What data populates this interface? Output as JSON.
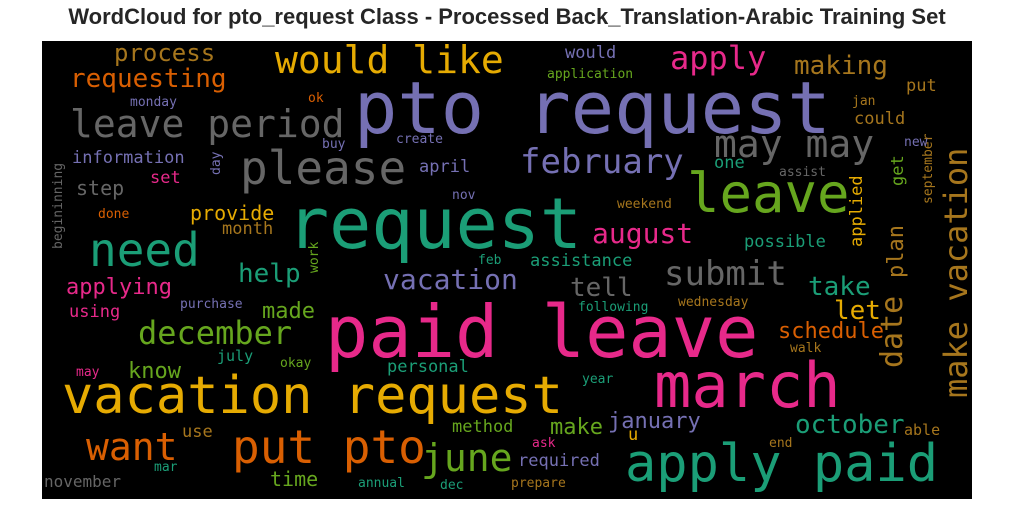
{
  "title": "WordCloud for pto_request Class - Processed Back_Translation-Arabic Training Set",
  "colors": {
    "purple": "#7570b3",
    "teal": "#1b9e77",
    "pink": "#e7298a",
    "orange": "#d95f02",
    "gold": "#e6ab02",
    "green": "#66a61e",
    "brown": "#a6761d",
    "gray": "#666666",
    "background": "#000000"
  },
  "words": [
    {
      "text": "pto request",
      "color": "purple"
    },
    {
      "text": "request",
      "color": "teal"
    },
    {
      "text": "paid leave",
      "color": "pink"
    },
    {
      "text": "vacation request",
      "color": "gold"
    },
    {
      "text": "march",
      "color": "pink"
    },
    {
      "text": "apply paid",
      "color": "teal"
    },
    {
      "text": "leave",
      "color": "green"
    },
    {
      "text": "please",
      "color": "gray"
    },
    {
      "text": "need",
      "color": "teal"
    },
    {
      "text": "put pto",
      "color": "orange"
    },
    {
      "text": "want",
      "color": "orange"
    },
    {
      "text": "make vacation",
      "color": "brown"
    },
    {
      "text": "may may",
      "color": "gray"
    },
    {
      "text": "leave period",
      "color": "gray"
    },
    {
      "text": "would like",
      "color": "gold"
    },
    {
      "text": "june",
      "color": "green"
    },
    {
      "text": "february",
      "color": "purple"
    },
    {
      "text": "december",
      "color": "green"
    },
    {
      "text": "submit",
      "color": "gray"
    },
    {
      "text": "date",
      "color": "brown"
    },
    {
      "text": "apply",
      "color": "pink"
    },
    {
      "text": "vacation",
      "color": "purple"
    },
    {
      "text": "august",
      "color": "pink"
    },
    {
      "text": "requesting",
      "color": "orange"
    },
    {
      "text": "process",
      "color": "brown"
    },
    {
      "text": "making",
      "color": "brown"
    },
    {
      "text": "help",
      "color": "teal"
    },
    {
      "text": "october",
      "color": "teal"
    },
    {
      "text": "tell",
      "color": "gray"
    },
    {
      "text": "take",
      "color": "teal"
    },
    {
      "text": "let",
      "color": "gold"
    },
    {
      "text": "plan",
      "color": "brown"
    },
    {
      "text": "applying",
      "color": "pink"
    },
    {
      "text": "january",
      "color": "purple"
    },
    {
      "text": "schedule",
      "color": "orange"
    },
    {
      "text": "make",
      "color": "green"
    },
    {
      "text": "know",
      "color": "green"
    },
    {
      "text": "made",
      "color": "green"
    },
    {
      "text": "provide",
      "color": "gold"
    },
    {
      "text": "step",
      "color": "gray"
    },
    {
      "text": "information",
      "color": "purple"
    },
    {
      "text": "could",
      "color": "brown"
    },
    {
      "text": "applied",
      "color": "gold"
    },
    {
      "text": "use",
      "color": "brown"
    },
    {
      "text": "time",
      "color": "green"
    },
    {
      "text": "required",
      "color": "purple"
    },
    {
      "text": "assistance",
      "color": "teal"
    },
    {
      "text": "possible",
      "color": "teal"
    },
    {
      "text": "method",
      "color": "green"
    },
    {
      "text": "personal",
      "color": "teal"
    },
    {
      "text": "month",
      "color": "brown"
    },
    {
      "text": "using",
      "color": "pink"
    },
    {
      "text": "put",
      "color": "brown"
    },
    {
      "text": "april",
      "color": "purple"
    },
    {
      "text": "set",
      "color": "pink"
    },
    {
      "text": "one",
      "color": "teal"
    },
    {
      "text": "get",
      "color": "green"
    },
    {
      "text": "would",
      "color": "purple"
    },
    {
      "text": "u",
      "color": "gold"
    },
    {
      "text": "july",
      "color": "teal"
    },
    {
      "text": "november",
      "color": "gray"
    },
    {
      "text": "able",
      "color": "brown"
    },
    {
      "text": "september",
      "color": "brown"
    },
    {
      "text": "application",
      "color": "green"
    },
    {
      "text": "monday",
      "color": "purple"
    },
    {
      "text": "ok",
      "color": "orange"
    },
    {
      "text": "jan",
      "color": "brown"
    },
    {
      "text": "buy",
      "color": "purple"
    },
    {
      "text": "create",
      "color": "purple"
    },
    {
      "text": "new",
      "color": "purple"
    },
    {
      "text": "day",
      "color": "purple"
    },
    {
      "text": "assist",
      "color": "gray"
    },
    {
      "text": "nov",
      "color": "purple"
    },
    {
      "text": "weekend",
      "color": "brown"
    },
    {
      "text": "done",
      "color": "orange"
    },
    {
      "text": "work",
      "color": "green"
    },
    {
      "text": "feb",
      "color": "teal"
    },
    {
      "text": "purchase",
      "color": "purple"
    },
    {
      "text": "following",
      "color": "teal"
    },
    {
      "text": "wednesday",
      "color": "brown"
    },
    {
      "text": "walk",
      "color": "brown"
    },
    {
      "text": "okay",
      "color": "green"
    },
    {
      "text": "may",
      "color": "pink"
    },
    {
      "text": "year",
      "color": "teal"
    },
    {
      "text": "end",
      "color": "brown"
    },
    {
      "text": "ask",
      "color": "pink"
    },
    {
      "text": "mar",
      "color": "teal"
    },
    {
      "text": "annual",
      "color": "teal"
    },
    {
      "text": "dec",
      "color": "teal"
    },
    {
      "text": "prepare",
      "color": "brown"
    },
    {
      "text": "begininning",
      "color": "gray"
    }
  ]
}
